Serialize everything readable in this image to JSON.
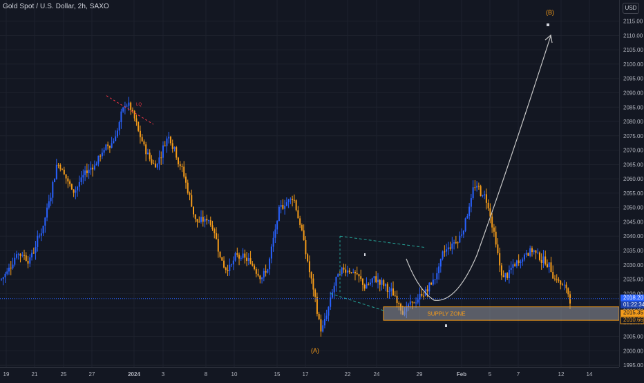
{
  "symbol": {
    "title": "Gold Spot / U.S. Dollar, 2h, SAXO",
    "currency": "USD"
  },
  "colors": {
    "background": "#131722",
    "up": "#2962ff",
    "down": "#f59c1a",
    "grid": "#1e222d",
    "last_price_line": "#2962ff",
    "zone_fill": "#9598a1",
    "zone_border": "#f59c1a",
    "annotation_orange": "#f59c1a",
    "arrow": "#c8c8c8",
    "triangle_line": "#26a69a",
    "trend_red": "#f23645"
  },
  "annotations": {
    "supply_zone": "SUPPLY ZONE",
    "wave_a": "(A)",
    "wave_b": "(B)",
    "trend_label": "LQ"
  },
  "price_tags": {
    "last_price": "2018.20",
    "countdown": "01:22:34",
    "zone_top": "2015.35",
    "zone_bottom": "2010.66"
  },
  "chart_data": {
    "type": "candlestick",
    "title": "Gold Spot / U.S. Dollar, 2h, SAXO",
    "y_axis": {
      "ylim": [
        1993,
        2121
      ],
      "ticks": [
        "1995.00",
        "2000.00",
        "2005.00",
        "2010.00",
        "2015.00",
        "2020.00",
        "2025.00",
        "2030.00",
        "2035.00",
        "2040.00",
        "2045.00",
        "2050.00",
        "2055.00",
        "2060.00",
        "2065.00",
        "2070.00",
        "2075.00",
        "2080.00",
        "2085.00",
        "2090.00",
        "2095.00",
        "2100.00",
        "2105.00",
        "2110.00",
        "2115.00"
      ],
      "side": "right"
    },
    "x_axis": {
      "labels": [
        "19",
        "21",
        "25",
        "27",
        "2024",
        "3",
        "8",
        "10",
        "15",
        "17",
        "22",
        "24",
        "29",
        "Feb",
        "5",
        "7",
        "12",
        "14"
      ]
    },
    "price_path_anchors": [
      {
        "date": "Dec 18",
        "price": 2025
      },
      {
        "date": "Dec 19",
        "price": 2035
      },
      {
        "date": "Dec 20",
        "price": 2032
      },
      {
        "date": "Dec 21",
        "price": 2045
      },
      {
        "date": "Dec 22",
        "price": 2068
      },
      {
        "date": "Dec 22",
        "price": 2055
      },
      {
        "date": "Dec 25",
        "price": 2062
      },
      {
        "date": "Dec 26",
        "price": 2068
      },
      {
        "date": "Dec 27",
        "price": 2074
      },
      {
        "date": "Dec 28",
        "price": 2088
      },
      {
        "date": "Dec 29",
        "price": 2072
      },
      {
        "date": "Jan 1",
        "price": 2064
      },
      {
        "date": "Jan 2",
        "price": 2077
      },
      {
        "date": "Jan 3",
        "price": 2062
      },
      {
        "date": "Jan 4",
        "price": 2044
      },
      {
        "date": "Jan 5",
        "price": 2046
      },
      {
        "date": "Jan 8",
        "price": 2028
      },
      {
        "date": "Jan 9",
        "price": 2033
      },
      {
        "date": "Jan 10",
        "price": 2030
      },
      {
        "date": "Jan 11",
        "price": 2026
      },
      {
        "date": "Jan 12",
        "price": 2050
      },
      {
        "date": "Jan 15",
        "price": 2055
      },
      {
        "date": "Jan 16",
        "price": 2030
      },
      {
        "date": "Jan 17",
        "price": 2005
      },
      {
        "date": "Jan 18",
        "price": 2025
      },
      {
        "date": "Jan 19",
        "price": 2030
      },
      {
        "date": "Jan 22",
        "price": 2022
      },
      {
        "date": "Jan 23",
        "price": 2025
      },
      {
        "date": "Jan 24",
        "price": 2020
      },
      {
        "date": "Jan 25",
        "price": 2014
      },
      {
        "date": "Jan 26",
        "price": 2018
      },
      {
        "date": "Jan 29",
        "price": 2024
      },
      {
        "date": "Jan 30",
        "price": 2036
      },
      {
        "date": "Jan 31",
        "price": 2040
      },
      {
        "date": "Feb 1",
        "price": 2058
      },
      {
        "date": "Feb 2",
        "price": 2052
      },
      {
        "date": "Feb 5",
        "price": 2024
      },
      {
        "date": "Feb 6",
        "price": 2030
      },
      {
        "date": "Feb 7",
        "price": 2036
      },
      {
        "date": "Feb 8",
        "price": 2032
      },
      {
        "date": "Feb 9",
        "price": 2025
      },
      {
        "date": "Feb 12",
        "price": 2018
      }
    ],
    "last_price": 2018.2,
    "supply_zone": {
      "label": "SUPPLY ZONE",
      "top": 2015.35,
      "bottom": 2010.66
    },
    "projection": {
      "from_price": 2017,
      "to_price": 2110,
      "label": "(B)"
    },
    "wave_a_low": 2004
  }
}
